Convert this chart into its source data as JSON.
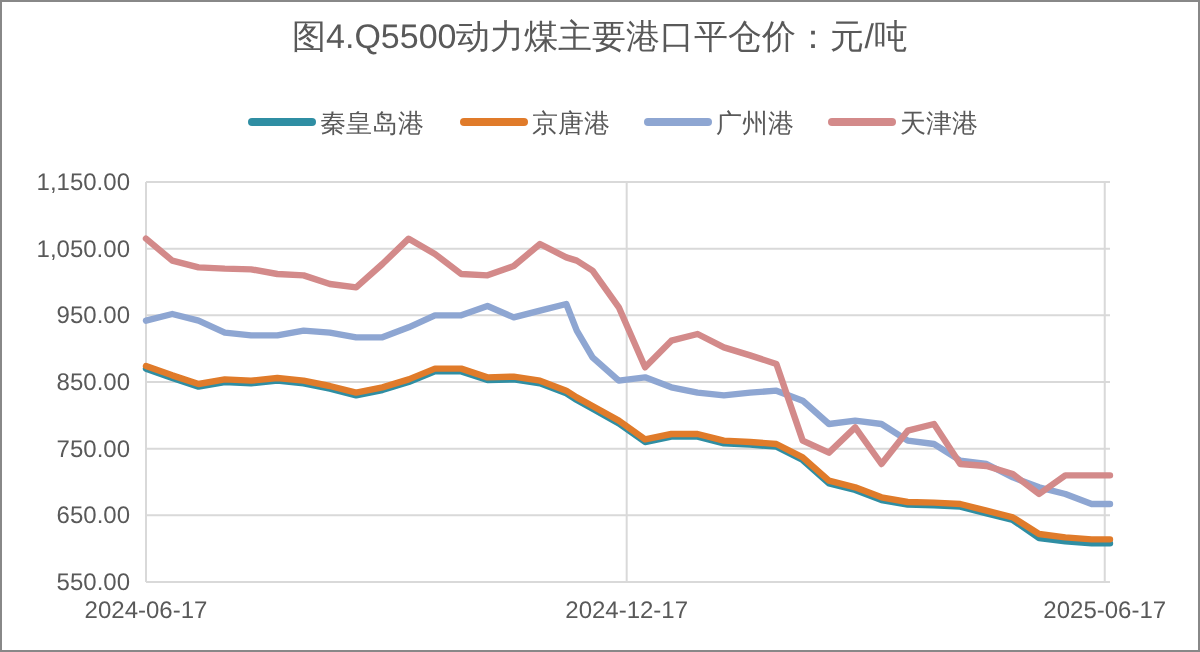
{
  "chart_data": {
    "type": "line",
    "title": "图4.Q5500动力煤主要港口平仓价：元/吨",
    "x": [
      "2024-06-17",
      "2024-06-27",
      "2024-07-07",
      "2024-07-17",
      "2024-07-27",
      "2024-08-06",
      "2024-08-16",
      "2024-08-26",
      "2024-09-05",
      "2024-09-15",
      "2024-09-25",
      "2024-10-05",
      "2024-10-15",
      "2024-10-25",
      "2024-11-04",
      "2024-11-14",
      "2024-11-24",
      "2024-11-28",
      "2024-12-04",
      "2024-12-14",
      "2024-12-24",
      "2025-01-03",
      "2025-01-13",
      "2025-01-23",
      "2025-02-02",
      "2025-02-12",
      "2025-02-22",
      "2025-03-04",
      "2025-03-14",
      "2025-03-24",
      "2025-04-03",
      "2025-04-13",
      "2025-04-23",
      "2025-05-03",
      "2025-05-13",
      "2025-05-23",
      "2025-06-02",
      "2025-06-12",
      "2025-06-19"
    ],
    "series": [
      {
        "name": "秦皇岛港",
        "color": "#2f8ea3",
        "values": [
          870,
          856,
          843,
          850,
          848,
          852,
          848,
          840,
          830,
          838,
          850,
          866,
          866,
          853,
          854,
          848,
          833,
          823,
          810,
          788,
          760,
          768,
          768,
          758,
          756,
          753,
          733,
          698,
          688,
          673,
          666,
          665,
          663,
          653,
          643,
          616,
          611,
          608,
          608
        ]
      },
      {
        "name": "京唐港",
        "color": "#e07b2a",
        "values": [
          874,
          860,
          847,
          854,
          852,
          856,
          852,
          844,
          834,
          842,
          854,
          870,
          870,
          857,
          858,
          852,
          837,
          827,
          814,
          792,
          764,
          772,
          772,
          762,
          760,
          757,
          737,
          702,
          692,
          677,
          670,
          669,
          667,
          657,
          647,
          622,
          617,
          614,
          614
        ]
      },
      {
        "name": "广州港",
        "color": "#8ea6d2",
        "values": [
          942,
          952,
          942,
          924,
          920,
          920,
          927,
          924,
          917,
          917,
          932,
          950,
          950,
          964,
          947,
          957,
          967,
          927,
          887,
          852,
          857,
          842,
          834,
          830,
          834,
          837,
          822,
          787,
          792,
          787,
          762,
          757,
          732,
          727,
          707,
          692,
          682,
          667,
          667
        ]
      },
      {
        "name": "天津港",
        "color": "#d38a8a",
        "values": [
          1065,
          1032,
          1022,
          1020,
          1019,
          1012,
          1010,
          997,
          992,
          1027,
          1065,
          1042,
          1012,
          1010,
          1024,
          1057,
          1037,
          1032,
          1017,
          962,
          872,
          912,
          922,
          902,
          890,
          877,
          762,
          744,
          782,
          727,
          777,
          787,
          727,
          724,
          712,
          682,
          710,
          710,
          710
        ]
      }
    ],
    "xlim": [
      "2024-06-17",
      "2025-06-19"
    ],
    "xticks": [
      {
        "value": "2024-06-17",
        "label": "2024-06-17"
      },
      {
        "value": "2024-12-17",
        "label": "2024-12-17"
      },
      {
        "value": "2025-06-17",
        "label": "2025-06-17"
      }
    ],
    "ylim": [
      550,
      1150
    ],
    "yticks": [
      {
        "value": 550,
        "label": "550.00"
      },
      {
        "value": 650,
        "label": "650.00"
      },
      {
        "value": 750,
        "label": "750.00"
      },
      {
        "value": 850,
        "label": "850.00"
      },
      {
        "value": 950,
        "label": "950.00"
      },
      {
        "value": 1050,
        "label": "1,050.00"
      },
      {
        "value": 1150,
        "label": "1,150.00"
      }
    ],
    "grid": true,
    "legend": "top",
    "marker": "none",
    "line_style": "solid"
  }
}
